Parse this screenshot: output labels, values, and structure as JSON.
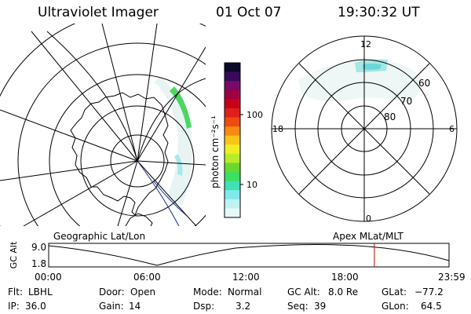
{
  "header": {
    "instrument": "Ultraviolet Imager",
    "date": "01 Oct 07",
    "time": "19:30:32 UT"
  },
  "colorbar": {
    "unit_label": "photon cm⁻²s⁻¹",
    "ticks": [
      {
        "label": "100",
        "value": 100
      },
      {
        "label": "10",
        "value": 10
      }
    ],
    "colors": [
      "#0a0a2a",
      "#3a0a5a",
      "#7a0a6a",
      "#a00040",
      "#c8001a",
      "#e0201a",
      "#f04a10",
      "#f88a10",
      "#f8c418",
      "#f0ee20",
      "#b8ec28",
      "#6ad830",
      "#3ce060",
      "#40e0b8",
      "#80eaea",
      "#c0f2f2",
      "#e6f8f8"
    ]
  },
  "polar_plot": {
    "mlt_labels": {
      "top": "12",
      "left": "18",
      "right": "6",
      "bottom": "0"
    },
    "mlat_labels": [
      "60",
      "70",
      "80"
    ]
  },
  "timeline": {
    "left_title": "Geographic Lat/Lon",
    "right_title": "Apex MLat/MLT",
    "axis_label": "GC Alt",
    "y_max_label": "9.0",
    "y_min_label": "1.8",
    "time_labels": [
      "00:00",
      "06:00",
      "12:00",
      "18:00",
      "23:59"
    ],
    "current_time_hours": 19.51,
    "marker_color": "#d00000"
  },
  "info": {
    "row1": [
      {
        "label": "Flt:",
        "value": "LBHL"
      },
      {
        "label": "Door:",
        "value": "Open"
      },
      {
        "label": "Mode:",
        "value": "Normal"
      },
      {
        "label": "GC Alt:",
        "value": "8.0 Re"
      },
      {
        "label": "GLat:",
        "value": "−77.2"
      }
    ],
    "row2": [
      {
        "label": "IP:",
        "value": "36.0"
      },
      {
        "label": "Gain:",
        "value": "14"
      },
      {
        "label": "Dsp:",
        "value": "3.2"
      },
      {
        "label": "Seq:",
        "value": "39"
      },
      {
        "label": "GLon:",
        "value": "64.5"
      }
    ]
  }
}
